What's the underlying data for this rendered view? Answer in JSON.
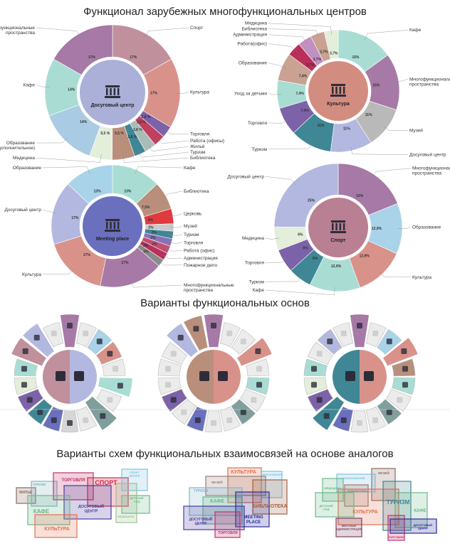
{
  "titles": {
    "section1": "Функционал зарубежных многофункциональных центров",
    "section2": "Варианты функциональных основ",
    "section3": "Варианты схем функциональных взаимосвязей на основе аналогов"
  },
  "chart_data": [
    {
      "type": "pie",
      "title": "Досуговый центр",
      "center_color": "#aab0d8",
      "categories": [
        "Спорт",
        "Культура",
        "Торговля",
        "Работа (офисы)",
        "Жильё",
        "Туризм",
        "Библиотека",
        "Медицина",
        "Образование (дополнительное)",
        "Кафе",
        "Многофункциональные пространства"
      ],
      "values": [
        17,
        17,
        2.8,
        2.8,
        2.8,
        2.8,
        5.5,
        5.5,
        14,
        14,
        17
      ],
      "value_labels": [
        "17%",
        "17%",
        "2,8 %",
        "2,8 %",
        "2,8 %",
        "2,8 %",
        "5,5 %",
        "5,5 %",
        "14%",
        "14%",
        "17%"
      ],
      "colors": [
        "#c0909c",
        "#d9928a",
        "#7c62a8",
        "#c0405e",
        "#a9bdb8",
        "#3f8795",
        "#b98f7c",
        "#e3eedb",
        "#a9cbe3",
        "#a9ddd3",
        "#a679a6"
      ]
    },
    {
      "type": "pie",
      "title": "Культура",
      "center_color": "#d38c80",
      "categories": [
        "Кафе",
        "Многофункциональные пространства",
        "Музей",
        "Досуговый центр",
        "Туризм",
        "Торговля",
        "Уход за детьми",
        "Образование",
        "Работа(офис)",
        "Администрация",
        "Библиотека",
        "Медицина"
      ],
      "values": [
        15,
        15,
        11,
        11,
        11,
        7.4,
        7.4,
        7.4,
        3.7,
        3.7,
        3.7,
        3.7
      ],
      "value_labels": [
        "15%",
        "15%",
        "11%",
        "11%",
        "11%",
        "7,4%",
        "7,4%",
        "7,4%",
        "3,7%",
        "3,7%",
        "3,7%",
        "3,7%"
      ],
      "colors": [
        "#a9ddd3",
        "#a679a6",
        "#b9b9b9",
        "#b3b8e0",
        "#3f8795",
        "#7c62a8",
        "#a9ddd3",
        "#c9a292",
        "#b8305a",
        "#c090c0",
        "#c9a292",
        "#e3eedb"
      ]
    },
    {
      "type": "pie",
      "title": "Meeting place",
      "center_color": "#6a70be",
      "categories": [
        "Кафе",
        "Библиотека",
        "Церковь",
        "Музей",
        "Туризм",
        "Торговля",
        "Работа (офис)",
        "Администрация",
        "Пожарное дело",
        "Многофункциональные пространства",
        "Культура",
        "Досуговый центр",
        "Образование"
      ],
      "values": [
        13,
        7.5,
        4,
        2,
        2,
        2,
        2,
        2,
        2,
        17,
        17,
        17,
        13
      ],
      "value_labels": [
        "13%",
        "7,5%",
        "4%",
        "2%",
        "2%",
        "2%",
        "2%",
        "2%",
        "2%",
        "17%",
        "17%",
        "17%",
        "13%"
      ],
      "colors": [
        "#a9ddd3",
        "#b98f7c",
        "#e0393e",
        "#c9c9c9",
        "#3f8795",
        "#8a70b8",
        "#c05070",
        "#b8305a",
        "#8a8a8a",
        "#a679a6",
        "#d9928a",
        "#b3b8e0",
        "#a9d3e8"
      ]
    },
    {
      "type": "pie",
      "title": "Спорт",
      "center_color": "#b97f92",
      "categories": [
        "Многофункциональные пространства",
        "Образование",
        "Культура",
        "Кафе",
        "Туризм",
        "Торговля",
        "Медицина",
        "Досуговый центр"
      ],
      "values": [
        19,
        12.9,
        12.9,
        12.9,
        6,
        6,
        6,
        25
      ],
      "value_labels": [
        "19%",
        "12,9%",
        "12,9%",
        "12,9%",
        "6%",
        "6%",
        "6%",
        "25%"
      ],
      "colors": [
        "#a679a6",
        "#a9d3e8",
        "#d9928a",
        "#a9ddd3",
        "#3f8795",
        "#7c62a8",
        "#e3eedb",
        "#b3b8e0"
      ]
    }
  ],
  "variants": [
    {
      "center_colors": [
        "#c0909c",
        "#b3b8e0"
      ],
      "segment_colors": [
        "#a679a6",
        "#ececec",
        "#a9d3e8",
        "#d9928a",
        "#ececec",
        "#a9ddd3",
        "#ececec",
        "#7f9e9c",
        "#ececec",
        "#d6d6d6",
        "#6a70be",
        "#3f8795",
        "#7c62a8",
        "#e3eedb",
        "#a9ddd3",
        "#c0909c",
        "#b3b8e0",
        "#ececec"
      ],
      "emphasized": [
        0,
        5,
        7,
        15,
        16
      ]
    },
    {
      "center_colors": [
        "#b98f7c",
        "#d9928a"
      ],
      "segment_colors": [
        "#a679a6",
        "#ececec",
        "#ececec",
        "#d9928a",
        "#ececec",
        "#a9ddd3",
        "#ececec",
        "#7f9e9c",
        "#ececec",
        "#ececec",
        "#6a70be",
        "#ececec",
        "#7c62a8",
        "#ececec",
        "#ececec",
        "#ececec",
        "#b3b8e0",
        "#b98f7c"
      ],
      "emphasized": [
        0,
        3,
        16,
        17
      ]
    },
    {
      "center_colors": [
        "#3f8795",
        "#d9928a"
      ],
      "segment_colors": [
        "#a679a6",
        "#ececec",
        "#a9d3e8",
        "#d9928a",
        "#b98f7c",
        "#a9ddd3",
        "#ececec",
        "#7f9e9c",
        "#ececec",
        "#ececec",
        "#6a70be",
        "#3f8795",
        "#7c62a8",
        "#e3eedb",
        "#a9ddd3",
        "#ececec",
        "#b3b8e0",
        "#ececec"
      ],
      "emphasized": [
        0,
        3,
        11
      ]
    }
  ],
  "schemes": [
    {
      "boxes": [
        {
          "label": "ЖИЛЬЕ",
          "color": "#8a6a60"
        },
        {
          "label": "ТУРИЗМ",
          "color": "#7fb0c0"
        },
        {
          "label": "ТОРГОВЛЯ",
          "color": "#c0306a"
        },
        {
          "label": "СПОРТ",
          "color": "#d0284a"
        },
        {
          "label": "ДОСУГОВЫЙ ЦЕНТР",
          "color": "#4a3aa0"
        },
        {
          "label": "КАФЕ",
          "color": "#6ab88a"
        },
        {
          "label": "КУЛЬТУРА",
          "color": "#e07050"
        },
        {
          "label": "СПОРТ ШКОЛА",
          "color": "#7ac0e0"
        },
        {
          "label": "ДЕТСКИЙ САД",
          "color": "#6ab88a"
        },
        {
          "label": "МЕДИЦИНА",
          "color": "#9ac090"
        }
      ]
    },
    {
      "boxes": [
        {
          "label": "КУЛЬТУРА",
          "color": "#e07050"
        },
        {
          "label": "ОБРАЗОВАНИЕ",
          "color": "#7ac0e0"
        },
        {
          "label": "МУЗЕЙ",
          "color": "#9a7a70"
        },
        {
          "label": "БИБЛИОТЕКА",
          "color": "#a06040"
        },
        {
          "label": "ТУРИЗМ",
          "color": "#80b8c8"
        },
        {
          "label": "КАФЕ",
          "color": "#6ab88a"
        },
        {
          "label": "ДОСУГОВЫЙ ЦЕНТР",
          "color": "#4a3aa0"
        },
        {
          "label": "MEETING PLACE",
          "color": "#2a2a9a"
        },
        {
          "label": "ТОРГОВЛЯ",
          "color": "#c0306a"
        }
      ]
    },
    {
      "boxes": [
        {
          "label": "МУЗЕЙ",
          "color": "#8a6a60"
        },
        {
          "label": "ОБРАЗОВАНИЕ",
          "color": "#7ac0e0"
        },
        {
          "label": "МЕДИЦИНА",
          "color": "#6ab88a"
        },
        {
          "label": "БИБЛИОТЕКА",
          "color": "#9a7a70"
        },
        {
          "label": "КУЛЬТУРА",
          "color": "#e07050"
        },
        {
          "label": "ТУРИЗМ",
          "color": "#3e8290"
        },
        {
          "label": "ДЕТСКИЙ САД",
          "color": "#6ab88a"
        },
        {
          "label": "КАФЕ",
          "color": "#6ab88a"
        },
        {
          "label": "МЕСТНАЯ АДМИНИСТРАЦИЯ",
          "color": "#7a4060"
        },
        {
          "label": "ТОРГОВЛЯ",
          "color": "#c0306a"
        },
        {
          "label": "ДОСУГОВЫЙ ЦЕНТР",
          "color": "#2a2a9a"
        }
      ]
    }
  ]
}
